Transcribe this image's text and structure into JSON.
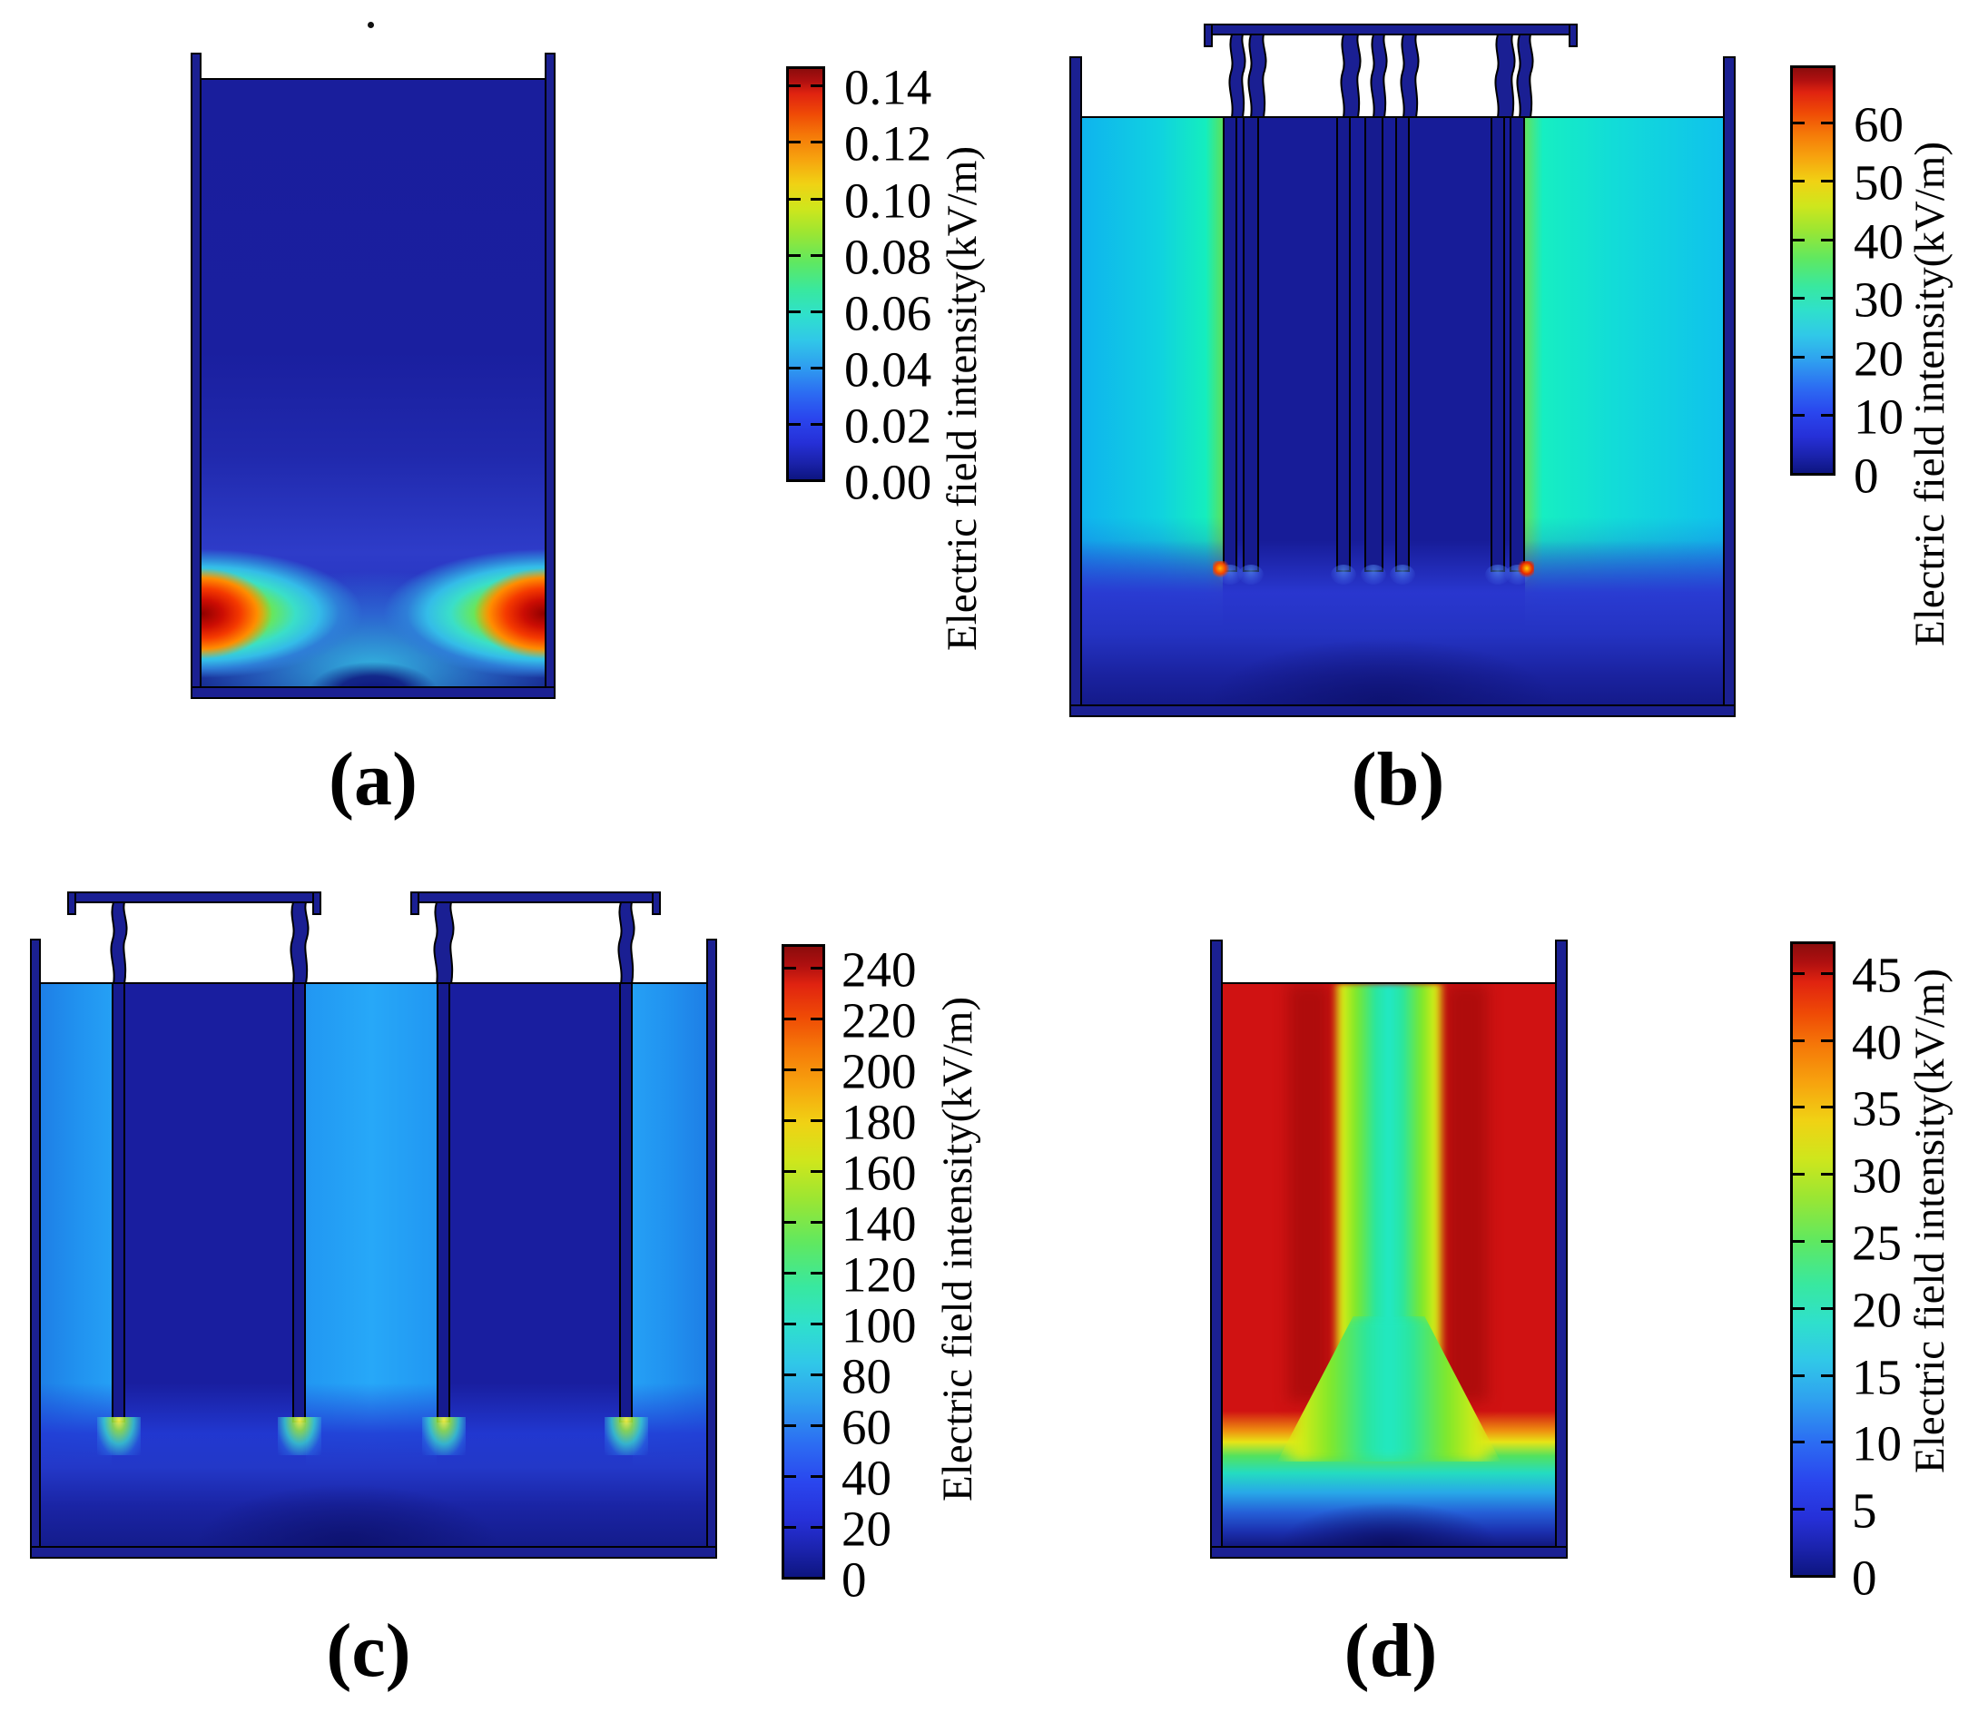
{
  "figure": {
    "description": "Four-panel simulated electric field intensity distributions in treatment tanks",
    "background": "#ffffff",
    "colormap": "jet",
    "accent_navy": "#1b2092"
  },
  "panels": {
    "a": {
      "label": "(a)",
      "colorbar": {
        "axis_label": "Electric field intensity(kV/m)",
        "unit": "kV/m",
        "tick_labels": [
          "0.14",
          "0.12",
          "0.10",
          "0.08",
          "0.06",
          "0.04",
          "0.02",
          "0.00"
        ],
        "tick_values": [
          0.14,
          0.12,
          0.1,
          0.08,
          0.06,
          0.04,
          0.02,
          0
        ],
        "min": 0,
        "max": 0.1475
      }
    },
    "b": {
      "label": "(b)",
      "colorbar": {
        "axis_label": "Electric field intensity(kV/m)",
        "unit": "kV/m",
        "tick_labels": [
          "60",
          "50",
          "40",
          "30",
          "20",
          "10",
          "0"
        ],
        "tick_values": [
          60,
          50,
          40,
          30,
          20,
          10,
          0
        ],
        "min": 0,
        "max": 70
      }
    },
    "c": {
      "label": "(c)",
      "colorbar": {
        "axis_label": "Electric field intensity(kV/m)",
        "unit": "kV/m",
        "tick_labels": [
          "240",
          "220",
          "200",
          "180",
          "160",
          "140",
          "120",
          "100",
          "80",
          "60",
          "40",
          "20",
          "0"
        ],
        "tick_values": [
          240,
          220,
          200,
          180,
          160,
          140,
          120,
          100,
          80,
          60,
          40,
          20,
          0
        ],
        "min": 0,
        "max": 250
      }
    },
    "d": {
      "label": "(d)",
      "colorbar": {
        "axis_label": "Electric field intensity(kV/m)",
        "unit": "kV/m",
        "tick_labels": [
          "45",
          "40",
          "35",
          "30",
          "25",
          "20",
          "15",
          "10",
          "5",
          "0"
        ],
        "tick_values": [
          45,
          40,
          35,
          30,
          25,
          20,
          15,
          10,
          5,
          0
        ],
        "min": 0,
        "max": 47.5
      }
    }
  },
  "chart_data": [
    {
      "type": "heatmap",
      "panel": "(a)",
      "title": "Electric field intensity(kV/m)",
      "colorbar_range": [
        0,
        0.147
      ],
      "colorbar_ticks": [
        0.0,
        0.02,
        0.04,
        0.06,
        0.08,
        0.1,
        0.12,
        0.14
      ],
      "field_pattern": "empty open-top tank; near-zero field (~0-0.01 kV/m, dark blue) over the upper volume; two intense lobes peaking ~0.13-0.14 kV/m (red) at the lower left and lower right walls, ringed by yellow-green (~0.08) and cyan (~0.04-0.05) halos that merge in a cyan band along the tank bottom with a dark low-field notch at bottom center"
    },
    {
      "type": "heatmap",
      "panel": "(b)",
      "title": "Electric field intensity(kV/m)",
      "colorbar_range": [
        0,
        70
      ],
      "colorbar_ticks": [
        0,
        10,
        20,
        30,
        40,
        50,
        60
      ],
      "field_pattern": "seven plate electrodes in three groups (2-3-2) hang from a top busbar into the tank; side channels between electrode stack and tank walls at ~20-30 kV/m (cyan, greener near the electrodes); near-zero field (dark blue) inside the electrode stack; ~5-12 kV/m (blue) region below the electrode tips; small red-orange singularities at the outer electrode tip corners"
    },
    {
      "type": "heatmap",
      "panel": "(c)",
      "title": "Electric field intensity(kV/m)",
      "colorbar_range": [
        0,
        250
      ],
      "colorbar_ticks": [
        0,
        20,
        40,
        60,
        80,
        100,
        120,
        140,
        160,
        180,
        200,
        220,
        240
      ],
      "field_pattern": "four rod electrodes suspended from two busbars; alternating vertical columns of ~50-60 kV/m (light azure, outside and between electrode pairs) and ~5 kV/m (dark blue, inside each pair); bright yellow-green/cyan hot spots up to ~150-240 kV/m at each electrode tip; ~10-30 kV/m (blue) zone below the tips darkening toward the bottom"
    },
    {
      "type": "heatmap",
      "panel": "(d)",
      "title": "Electric field intensity(kV/m)",
      "colorbar_range": [
        0,
        47.5
      ],
      "colorbar_ticks": [
        0,
        5,
        10,
        15,
        20,
        25,
        30,
        35,
        40,
        45
      ],
      "field_pattern": "tank bulk saturated above ~45 kV/m (red with darker-red vertical streaks); central vertical channel at ~20-25 kV/m (cyan core with yellow-green edges) widening downward; field decays near the bottom through yellow-green (~30), cyan (~20), blue (~10) bands to ~0 kV/m (dark navy) at the floor"
    }
  ]
}
